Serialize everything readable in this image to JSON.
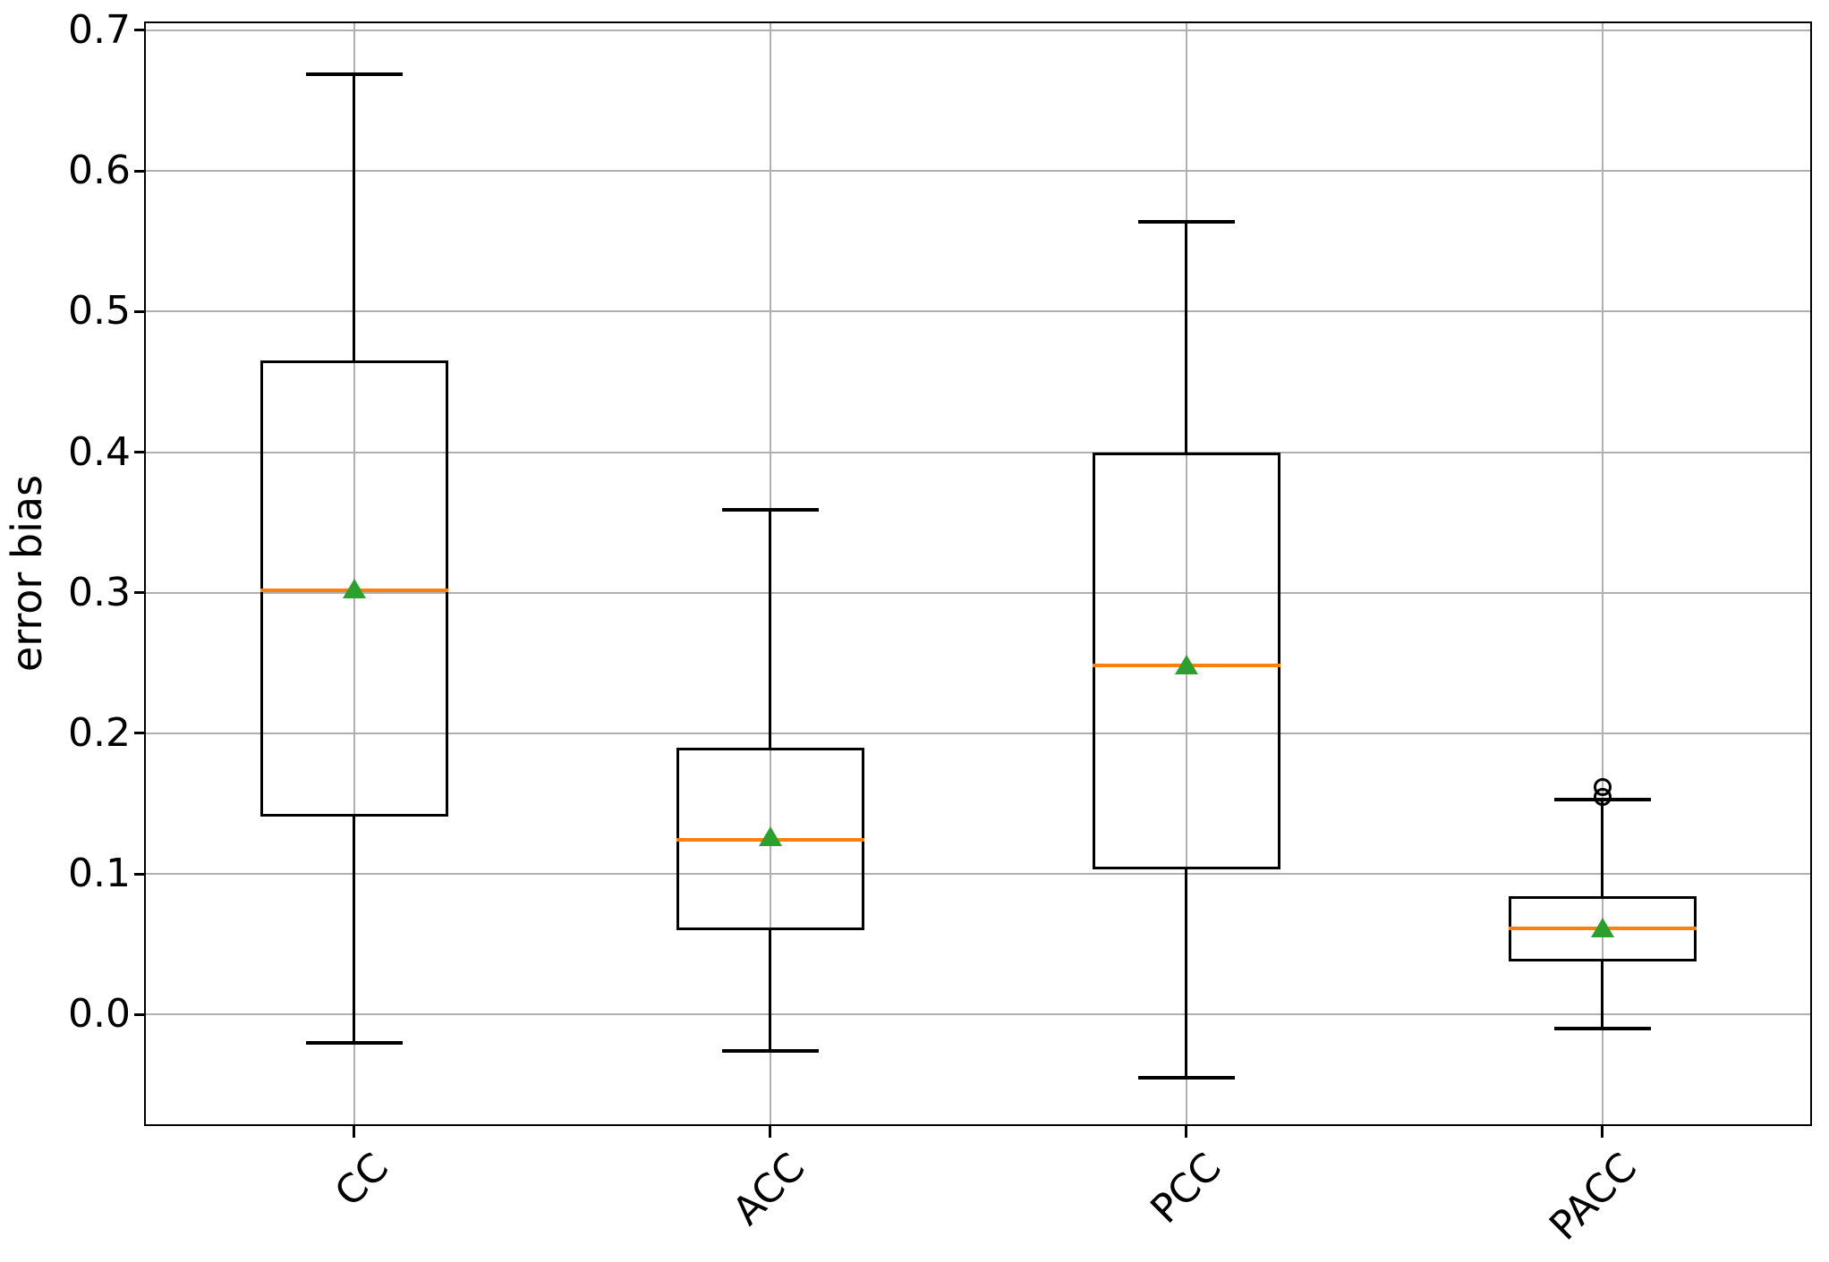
{
  "chart_data": {
    "type": "boxplot",
    "title": "",
    "ylabel": "error bias",
    "xlabel": "",
    "categories": [
      "CC",
      "ACC",
      "PCC",
      "PACC"
    ],
    "ylim": [
      -0.078,
      0.705
    ],
    "yticks": [
      0.0,
      0.1,
      0.2,
      0.3,
      0.4,
      0.5,
      0.6,
      0.7
    ],
    "ytick_labels": [
      "0.0",
      "0.1",
      "0.2",
      "0.3",
      "0.4",
      "0.5",
      "0.6",
      "0.7"
    ],
    "grid": true,
    "legend": false,
    "xtick_rotation_deg": 45,
    "series": [
      {
        "name": "CC",
        "whisker_low": -0.02,
        "q1": 0.141,
        "median": 0.302,
        "q3": 0.465,
        "whisker_high": 0.669,
        "mean": 0.303,
        "outliers": []
      },
      {
        "name": "ACC",
        "whisker_low": -0.026,
        "q1": 0.06,
        "median": 0.124,
        "q3": 0.19,
        "whisker_high": 0.359,
        "mean": 0.127,
        "outliers": []
      },
      {
        "name": "PCC",
        "whisker_low": -0.045,
        "q1": 0.103,
        "median": 0.248,
        "q3": 0.4,
        "whisker_high": 0.564,
        "mean": 0.249,
        "outliers": []
      },
      {
        "name": "PACC",
        "whisker_low": -0.01,
        "q1": 0.038,
        "median": 0.061,
        "q3": 0.084,
        "whisker_high": 0.153,
        "mean": 0.062,
        "outliers": [
          0.155,
          0.162
        ]
      }
    ],
    "colors": {
      "median": "#ff7f0e",
      "mean": "#2ca02c",
      "box": "#000000",
      "grid": "#b0b0b0",
      "background": "#ffffff"
    }
  }
}
